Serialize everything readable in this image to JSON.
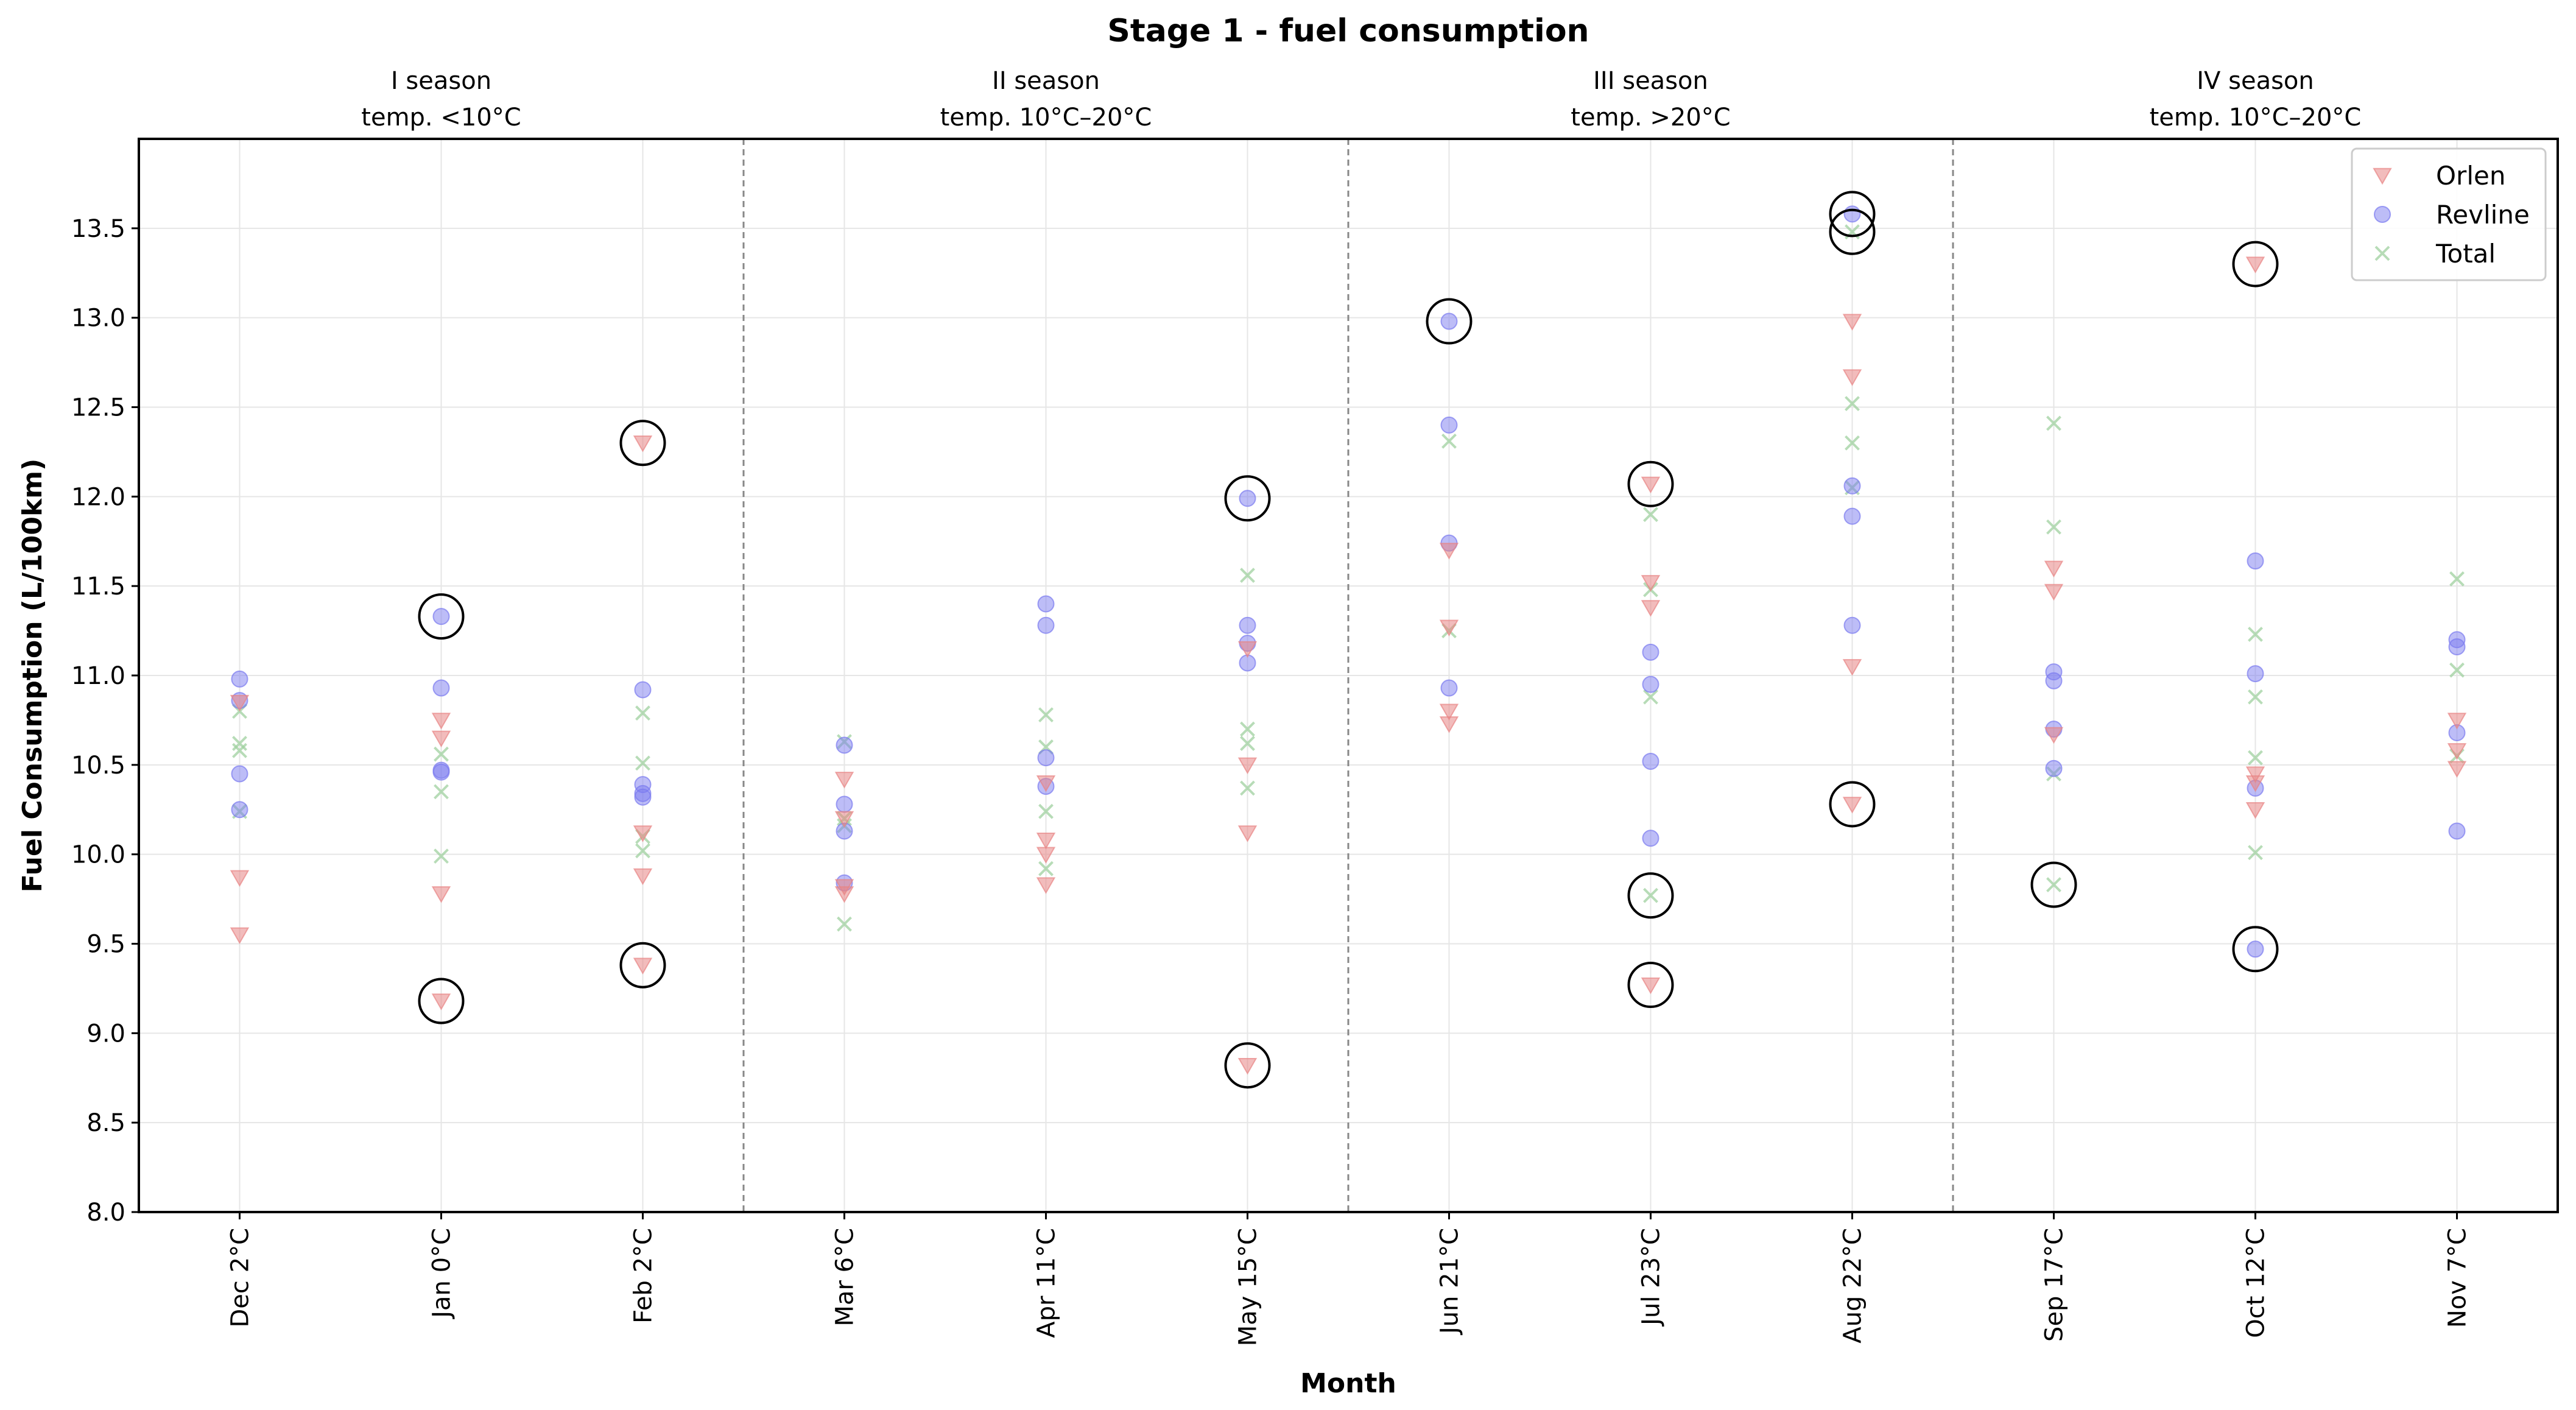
{
  "chart_data": {
    "type": "scatter",
    "title": "Stage 1 - fuel consumption",
    "xlabel": "Month",
    "ylabel": "Fuel Consumption (L/100km)",
    "ylim": [
      8.0,
      14.0
    ],
    "yticks": [
      "8.0",
      "8.5",
      "9.0",
      "9.5",
      "10.0",
      "10.5",
      "11.0",
      "11.5",
      "12.0",
      "12.5",
      "13.0",
      "13.5"
    ],
    "categories": [
      "Dec 2°C",
      "Jan 0°C",
      "Feb 2°C",
      "Mar 6°C",
      "Apr 11°C",
      "May 15°C",
      "Jun 21°C",
      "Jul 23°C",
      "Aug 22°C",
      "Sep 17°C",
      "Oct 12°C",
      "Nov 7°C"
    ],
    "grid": true,
    "legend_position": "top-right",
    "seasons": [
      {
        "name": "I season",
        "temp": "temp. <10°C",
        "start": 0,
        "end": 2
      },
      {
        "name": "II season",
        "temp": "temp. 10°C–20°C",
        "start": 3,
        "end": 5
      },
      {
        "name": "III season",
        "temp": "temp. >20°C",
        "start": 6,
        "end": 8
      },
      {
        "name": "IV season",
        "temp": "temp. 10°C–20°C",
        "start": 9,
        "end": 11
      }
    ],
    "series": [
      {
        "name": "Orlen",
        "marker": "triangle-down",
        "color": "#e88585",
        "points": [
          [
            0,
            10.85
          ],
          [
            0,
            9.87
          ],
          [
            0,
            9.55
          ],
          [
            1,
            10.75
          ],
          [
            1,
            10.65
          ],
          [
            1,
            9.78
          ],
          [
            1,
            9.18
          ],
          [
            2,
            12.3
          ],
          [
            2,
            10.12
          ],
          [
            2,
            9.88
          ],
          [
            2,
            9.38
          ],
          [
            3,
            10.42
          ],
          [
            3,
            10.2
          ],
          [
            3,
            9.82
          ],
          [
            3,
            9.78
          ],
          [
            4,
            10.4
          ],
          [
            4,
            10.08
          ],
          [
            4,
            10.0
          ],
          [
            4,
            9.83
          ],
          [
            5,
            11.15
          ],
          [
            5,
            10.5
          ],
          [
            5,
            10.12
          ],
          [
            5,
            8.82
          ],
          [
            6,
            11.7
          ],
          [
            6,
            11.27
          ],
          [
            6,
            10.8
          ],
          [
            6,
            10.73
          ],
          [
            7,
            12.07
          ],
          [
            7,
            11.52
          ],
          [
            7,
            11.38
          ],
          [
            7,
            9.27
          ],
          [
            8,
            12.98
          ],
          [
            8,
            12.67
          ],
          [
            8,
            11.05
          ],
          [
            8,
            10.28
          ],
          [
            9,
            11.6
          ],
          [
            9,
            11.47
          ],
          [
            9,
            10.67
          ],
          [
            10,
            13.3
          ],
          [
            10,
            10.45
          ],
          [
            10,
            10.4
          ],
          [
            10,
            10.25
          ],
          [
            11,
            10.75
          ],
          [
            11,
            10.58
          ],
          [
            11,
            10.48
          ]
        ]
      },
      {
        "name": "Revline",
        "marker": "circle",
        "color": "#7b7bf0",
        "points": [
          [
            0,
            10.98
          ],
          [
            0,
            10.86
          ],
          [
            0,
            10.45
          ],
          [
            0,
            10.25
          ],
          [
            1,
            11.33
          ],
          [
            1,
            10.93
          ],
          [
            1,
            10.47
          ],
          [
            1,
            10.46
          ],
          [
            2,
            10.92
          ],
          [
            2,
            10.39
          ],
          [
            2,
            10.34
          ],
          [
            2,
            10.32
          ],
          [
            3,
            10.61
          ],
          [
            3,
            10.28
          ],
          [
            3,
            10.13
          ],
          [
            3,
            9.84
          ],
          [
            4,
            11.4
          ],
          [
            4,
            11.28
          ],
          [
            4,
            10.54
          ],
          [
            4,
            10.38
          ],
          [
            5,
            11.99
          ],
          [
            5,
            11.28
          ],
          [
            5,
            11.18
          ],
          [
            5,
            11.07
          ],
          [
            6,
            12.98
          ],
          [
            6,
            12.4
          ],
          [
            6,
            11.74
          ],
          [
            6,
            10.93
          ],
          [
            7,
            11.13
          ],
          [
            7,
            10.95
          ],
          [
            7,
            10.52
          ],
          [
            7,
            10.09
          ],
          [
            8,
            13.58
          ],
          [
            8,
            12.06
          ],
          [
            8,
            11.89
          ],
          [
            8,
            11.28
          ],
          [
            9,
            11.02
          ],
          [
            9,
            10.97
          ],
          [
            9,
            10.7
          ],
          [
            9,
            10.48
          ],
          [
            10,
            11.64
          ],
          [
            10,
            11.01
          ],
          [
            10,
            10.37
          ],
          [
            10,
            9.47
          ],
          [
            11,
            11.2
          ],
          [
            11,
            11.16
          ],
          [
            11,
            10.68
          ],
          [
            11,
            10.13
          ]
        ]
      },
      {
        "name": "Total",
        "marker": "x",
        "color": "#9fd09f",
        "points": [
          [
            0,
            10.8
          ],
          [
            0,
            10.62
          ],
          [
            0,
            10.58
          ],
          [
            0,
            10.24
          ],
          [
            1,
            10.56
          ],
          [
            1,
            10.35
          ],
          [
            1,
            9.99
          ],
          [
            2,
            10.79
          ],
          [
            2,
            10.51
          ],
          [
            2,
            10.1
          ],
          [
            2,
            10.02
          ],
          [
            3,
            10.63
          ],
          [
            3,
            10.2
          ],
          [
            3,
            10.16
          ],
          [
            3,
            9.61
          ],
          [
            4,
            10.78
          ],
          [
            4,
            10.6
          ],
          [
            4,
            10.24
          ],
          [
            4,
            9.92
          ],
          [
            5,
            11.56
          ],
          [
            5,
            10.7
          ],
          [
            5,
            10.62
          ],
          [
            5,
            10.37
          ],
          [
            6,
            12.31
          ],
          [
            6,
            11.25
          ],
          [
            7,
            11.9
          ],
          [
            7,
            11.48
          ],
          [
            7,
            10.88
          ],
          [
            7,
            9.77
          ],
          [
            8,
            13.48
          ],
          [
            8,
            12.52
          ],
          [
            8,
            12.3
          ],
          [
            8,
            12.05
          ],
          [
            9,
            12.41
          ],
          [
            9,
            11.83
          ],
          [
            9,
            10.45
          ],
          [
            9,
            9.83
          ],
          [
            10,
            11.23
          ],
          [
            10,
            10.88
          ],
          [
            10,
            10.54
          ],
          [
            10,
            10.01
          ],
          [
            11,
            11.54
          ],
          [
            11,
            11.03
          ],
          [
            11,
            10.55
          ]
        ]
      }
    ],
    "outliers": [
      [
        1,
        11.33
      ],
      [
        1,
        9.18
      ],
      [
        2,
        12.3
      ],
      [
        2,
        9.38
      ],
      [
        5,
        11.99
      ],
      [
        5,
        8.82
      ],
      [
        6,
        12.98
      ],
      [
        7,
        12.07
      ],
      [
        7,
        9.77
      ],
      [
        7,
        9.27
      ],
      [
        8,
        13.58
      ],
      [
        8,
        13.48
      ],
      [
        8,
        10.28
      ],
      [
        9,
        9.83
      ],
      [
        10,
        13.3
      ],
      [
        10,
        9.47
      ]
    ]
  }
}
